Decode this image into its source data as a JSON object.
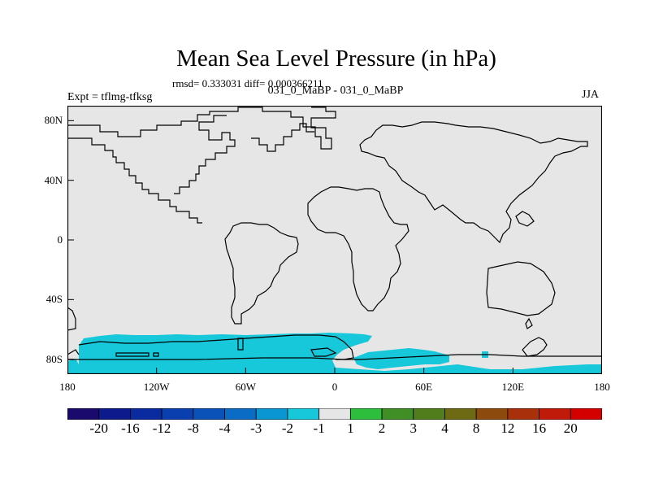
{
  "chart_data": {
    "type": "heatmap",
    "title": "Mean Sea Level Pressure (in hPa)",
    "stats_text": "rmsd= 0.333031 diff= 0.000366211",
    "left_label": "Expt = tflmg-tfksg",
    "center_label": "031_0_MaBP - 031_0_MaBP",
    "right_label": "JJA",
    "x_ticks": [
      "180",
      "120W",
      "60W",
      "0",
      "60E",
      "120E",
      "180"
    ],
    "y_ticks": [
      "80N",
      "40N",
      "0",
      "40S",
      "80S"
    ],
    "xlim": [
      -180,
      180
    ],
    "ylim": [
      -90,
      90
    ],
    "colorbar": {
      "labels": [
        "-20",
        "-16",
        "-12",
        "-8",
        "-4",
        "-3",
        "-2",
        "-1",
        "1",
        "2",
        "3",
        "4",
        "8",
        "12",
        "16",
        "20"
      ],
      "colors": [
        "#1a0a6e",
        "#0d1a8c",
        "#0a2aa0",
        "#0a3fb0",
        "#0a52b8",
        "#0a6cc4",
        "#0a96d2",
        "#16c8da",
        "#e6e6e6",
        "#2cbe3c",
        "#3f8e26",
        "#527d1c",
        "#6e6a14",
        "#8c4a0c",
        "#a8300a",
        "#c01a0a",
        "#d40000"
      ]
    },
    "background_value_range": "-1 to 1",
    "highlighted_region": {
      "description": "Antarctic coastal band with values between -2 and -1 hPa",
      "lat_range": [
        -90,
        -62
      ],
      "color": "#16c8da"
    }
  }
}
